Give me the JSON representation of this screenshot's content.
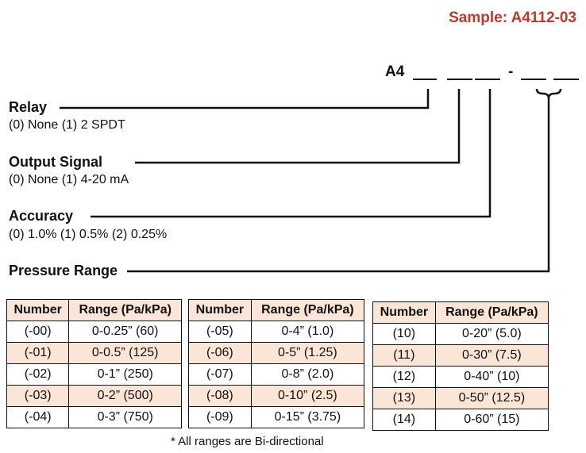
{
  "sample": "Sample: A4112-03",
  "code_prefix": "A4",
  "code_dash": "-",
  "relay": {
    "label": "Relay",
    "options": "(0) None (1) 2 SPDT"
  },
  "output_signal": {
    "label": "Output Signal",
    "options": "(0) None (1) 4-20 mA"
  },
  "accuracy": {
    "label": "Accuracy",
    "options": "(0) 1.0% (1) 0.5% (2) 0.25%"
  },
  "pressure_range": {
    "label": "Pressure Range"
  },
  "table_headers": {
    "number": "Number",
    "range": "Range (Pa/kPa)"
  },
  "tables": [
    {
      "rows": [
        {
          "number": "(-00)",
          "range": "0-0.25” (60)"
        },
        {
          "number": "(-01)",
          "range": "0-0.5” (125)"
        },
        {
          "number": "(-02)",
          "range": "0-1” (250)"
        },
        {
          "number": "(-03)",
          "range": "0-2” (500)"
        },
        {
          "number": "(-04)",
          "range": "0-3” (750)"
        }
      ]
    },
    {
      "rows": [
        {
          "number": "(-05)",
          "range": "0-4” (1.0)"
        },
        {
          "number": "(-06)",
          "range": "0-5” (1.25)"
        },
        {
          "number": "(-07)",
          "range": "0-8” (2.0)"
        },
        {
          "number": "(-08)",
          "range": "0-10” (2.5)"
        },
        {
          "number": "(-09)",
          "range": "0-15” (3.75)"
        }
      ]
    },
    {
      "rows": [
        {
          "number": "(10)",
          "range": "0-20” (5.0)"
        },
        {
          "number": "(11)",
          "range": "0-30” (7.5)"
        },
        {
          "number": "(12)",
          "range": "0-40” (10)"
        },
        {
          "number": "(13)",
          "range": "0-50” (12.5)"
        },
        {
          "number": "(14)",
          "range": "0-60” (15)"
        }
      ]
    }
  ],
  "note": "* All ranges are Bi-directional"
}
